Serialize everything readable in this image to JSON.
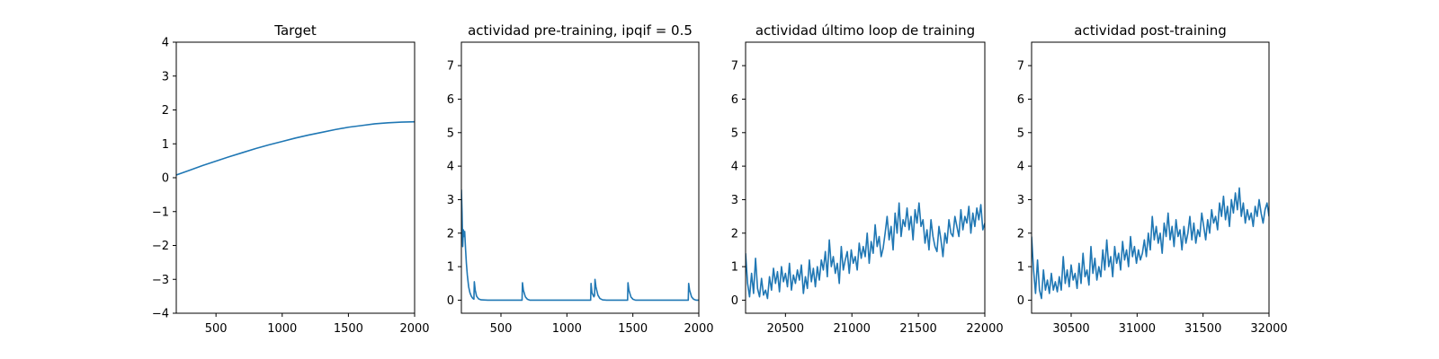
{
  "figure": {
    "background": "#ffffff",
    "line_color": "#1f77b4"
  },
  "chart_data": [
    {
      "type": "line",
      "title": "Target",
      "xlim": [
        200,
        2000
      ],
      "ylim": [
        -4,
        4
      ],
      "xticks": [
        500,
        1000,
        1500,
        2000
      ],
      "yticks": [
        -4,
        -3,
        -2,
        -1,
        0,
        1,
        2,
        3,
        4
      ],
      "series": [
        {
          "x": [
            200,
            300,
            400,
            500,
            600,
            700,
            800,
            900,
            1000,
            1100,
            1200,
            1300,
            1400,
            1500,
            1600,
            1700,
            1800,
            1900,
            2000
          ],
          "y": [
            0.08,
            0.22,
            0.36,
            0.49,
            0.62,
            0.74,
            0.86,
            0.97,
            1.07,
            1.17,
            1.26,
            1.34,
            1.42,
            1.49,
            1.54,
            1.59,
            1.62,
            1.64,
            1.65
          ]
        }
      ]
    },
    {
      "type": "line",
      "title": "actividad pre-training, ipqif = 0.5",
      "xlim": [
        200,
        2000
      ],
      "ylim": [
        -0.39,
        7.7
      ],
      "xticks": [
        500,
        1000,
        1500,
        2000
      ],
      "yticks": [
        0,
        1,
        2,
        3,
        4,
        5,
        6,
        7
      ],
      "series": [
        {
          "x": [
            200,
            205,
            210,
            215,
            220,
            225,
            232,
            238,
            245,
            255,
            265,
            275,
            285,
            295,
            298,
            305,
            315,
            330,
            350,
            400,
            500,
            600,
            660,
            663,
            670,
            685,
            700,
            720,
            800,
            1000,
            1180,
            1183,
            1190,
            1205,
            1210,
            1213,
            1220,
            1235,
            1250,
            1270,
            1300,
            1400,
            1460,
            1463,
            1470,
            1485,
            1500,
            1520,
            1600,
            1800,
            1920,
            1923,
            1930,
            1945,
            1960,
            1980,
            2000
          ],
          "y": [
            3.3,
            2.6,
            1.6,
            2.1,
            1.9,
            2.05,
            1.5,
            1.1,
            0.75,
            0.4,
            0.22,
            0.12,
            0.06,
            0.03,
            0.55,
            0.3,
            0.12,
            0.04,
            0.01,
            0.0,
            0.0,
            0.0,
            0.0,
            0.52,
            0.3,
            0.1,
            0.03,
            0.0,
            0.0,
            0.0,
            0.0,
            0.5,
            0.22,
            0.1,
            0.15,
            0.62,
            0.4,
            0.15,
            0.05,
            0.01,
            0.0,
            0.0,
            0.0,
            0.52,
            0.3,
            0.1,
            0.03,
            0.0,
            0.0,
            0.0,
            0.0,
            0.5,
            0.3,
            0.1,
            0.03,
            0.0,
            0.0
          ]
        }
      ]
    },
    {
      "type": "line",
      "title": "actividad último loop de training",
      "xlim": [
        20200,
        22000
      ],
      "ylim": [
        -0.39,
        7.7
      ],
      "xticks": [
        20500,
        21000,
        21500,
        22000
      ],
      "yticks": [
        0,
        1,
        2,
        3,
        4,
        5,
        6,
        7
      ],
      "series": [
        {
          "x": [
            20200,
            20215,
            20230,
            20245,
            20260,
            20275,
            20290,
            20305,
            20320,
            20335,
            20350,
            20365,
            20380,
            20395,
            20410,
            20425,
            20440,
            20455,
            20470,
            20485,
            20500,
            20515,
            20530,
            20545,
            20560,
            20575,
            20590,
            20605,
            20620,
            20635,
            20650,
            20665,
            20680,
            20695,
            20710,
            20725,
            20740,
            20755,
            20770,
            20785,
            20800,
            20815,
            20830,
            20845,
            20860,
            20875,
            20890,
            20905,
            20920,
            20935,
            20950,
            20965,
            20980,
            20995,
            21010,
            21025,
            21040,
            21055,
            21070,
            21085,
            21100,
            21115,
            21130,
            21145,
            21160,
            21175,
            21190,
            21205,
            21220,
            21235,
            21250,
            21265,
            21280,
            21295,
            21310,
            21325,
            21340,
            21355,
            21370,
            21385,
            21400,
            21415,
            21430,
            21445,
            21460,
            21475,
            21490,
            21505,
            21520,
            21535,
            21550,
            21565,
            21580,
            21595,
            21610,
            21625,
            21640,
            21655,
            21670,
            21685,
            21700,
            21715,
            21730,
            21745,
            21760,
            21775,
            21790,
            21805,
            21820,
            21835,
            21850,
            21865,
            21880,
            21895,
            21910,
            21925,
            21940,
            21955,
            21970,
            21985,
            22000
          ],
          "y": [
            1.4,
            0.5,
            0.1,
            0.8,
            0.2,
            1.25,
            0.35,
            0.1,
            0.65,
            0.15,
            0.3,
            0.05,
            0.7,
            0.3,
            0.95,
            0.5,
            0.85,
            0.25,
            1.0,
            0.55,
            0.8,
            0.4,
            1.1,
            0.3,
            0.75,
            0.5,
            0.9,
            0.6,
            1.05,
            0.2,
            0.7,
            0.35,
            1.2,
            0.55,
            0.95,
            0.4,
            1.0,
            0.6,
            1.2,
            0.9,
            1.45,
            0.7,
            1.8,
            1.0,
            1.3,
            0.8,
            1.1,
            0.5,
            1.6,
            0.9,
            1.2,
            1.45,
            0.8,
            1.5,
            1.1,
            1.3,
            0.9,
            1.7,
            1.25,
            1.6,
            1.3,
            2.0,
            1.1,
            1.75,
            1.4,
            2.25,
            1.6,
            1.9,
            1.3,
            1.55,
            2.0,
            2.5,
            1.8,
            2.2,
            1.5,
            2.6,
            2.0,
            2.9,
            1.9,
            2.4,
            2.2,
            2.75,
            2.1,
            2.5,
            1.8,
            2.7,
            2.3,
            2.9,
            2.2,
            2.4,
            1.7,
            2.1,
            1.5,
            2.4,
            1.9,
            1.6,
            1.45,
            2.2,
            1.8,
            1.3,
            2.0,
            1.7,
            2.4,
            2.0,
            1.9,
            2.5,
            2.2,
            1.9,
            2.7,
            2.1,
            2.5,
            2.3,
            2.8,
            2.0,
            2.6,
            2.2,
            2.75,
            2.4,
            2.85,
            2.1,
            2.3
          ]
        }
      ]
    },
    {
      "type": "line",
      "title": "actividad post-training",
      "xlim": [
        30200,
        32000
      ],
      "ylim": [
        -0.39,
        7.7
      ],
      "xticks": [
        30500,
        31000,
        31500,
        32000
      ],
      "yticks": [
        0,
        1,
        2,
        3,
        4,
        5,
        6,
        7
      ],
      "series": [
        {
          "x": [
            30200,
            30215,
            30230,
            30245,
            30260,
            30275,
            30290,
            30305,
            30320,
            30335,
            30350,
            30365,
            30380,
            30395,
            30410,
            30425,
            30440,
            30455,
            30470,
            30485,
            30500,
            30515,
            30530,
            30545,
            30560,
            30575,
            30590,
            30605,
            30620,
            30635,
            30650,
            30665,
            30680,
            30695,
            30710,
            30725,
            30740,
            30755,
            30770,
            30785,
            30800,
            30815,
            30830,
            30845,
            30860,
            30875,
            30890,
            30905,
            30920,
            30935,
            30950,
            30965,
            30980,
            30995,
            31010,
            31025,
            31040,
            31055,
            31070,
            31085,
            31100,
            31115,
            31130,
            31145,
            31160,
            31175,
            31190,
            31205,
            31220,
            31235,
            31250,
            31265,
            31280,
            31295,
            31310,
            31325,
            31340,
            31355,
            31370,
            31385,
            31400,
            31415,
            31430,
            31445,
            31460,
            31475,
            31490,
            31505,
            31520,
            31535,
            31550,
            31565,
            31580,
            31595,
            31610,
            31625,
            31640,
            31655,
            31670,
            31685,
            31700,
            31715,
            31730,
            31745,
            31760,
            31775,
            31790,
            31805,
            31820,
            31835,
            31850,
            31865,
            31880,
            31895,
            31910,
            31925,
            31940,
            31955,
            31970,
            31985,
            32000
          ],
          "y": [
            1.9,
            0.9,
            0.2,
            1.2,
            0.3,
            0.05,
            0.9,
            0.3,
            0.6,
            0.2,
            0.8,
            0.3,
            0.55,
            0.25,
            0.7,
            0.3,
            1.3,
            0.5,
            0.9,
            0.4,
            1.05,
            0.6,
            0.8,
            0.35,
            1.1,
            0.5,
            1.4,
            0.7,
            0.9,
            0.45,
            1.6,
            0.8,
            1.25,
            0.6,
            1.0,
            0.7,
            1.5,
            0.9,
            1.8,
            1.0,
            1.3,
            0.7,
            1.6,
            1.1,
            1.4,
            0.9,
            1.75,
            1.2,
            1.5,
            1.0,
            1.9,
            1.3,
            1.6,
            1.1,
            1.5,
            1.2,
            1.4,
            1.8,
            1.3,
            2.0,
            1.5,
            2.5,
            1.8,
            2.2,
            1.7,
            2.0,
            1.4,
            2.3,
            1.9,
            2.6,
            1.8,
            2.2,
            1.6,
            2.4,
            1.9,
            2.1,
            1.5,
            2.2,
            1.7,
            2.0,
            2.5,
            1.8,
            2.3,
            1.7,
            2.1,
            1.9,
            2.6,
            2.2,
            1.8,
            2.4,
            2.0,
            2.7,
            2.3,
            2.5,
            2.1,
            2.9,
            2.5,
            3.1,
            2.4,
            2.8,
            2.2,
            3.0,
            2.6,
            3.2,
            2.7,
            3.35,
            2.5,
            2.9,
            2.3,
            2.7,
            2.4,
            2.6,
            2.2,
            2.8,
            2.5,
            3.0,
            2.6,
            2.3,
            2.7,
            2.9,
            2.5
          ]
        }
      ]
    }
  ]
}
